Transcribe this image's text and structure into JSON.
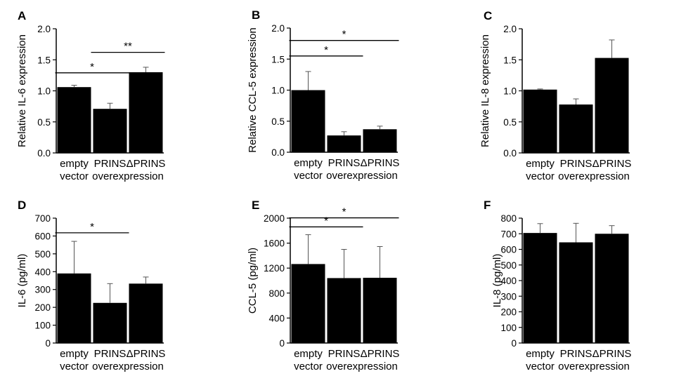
{
  "figure": {
    "bar_color": "#000000",
    "axis_color": "#000000",
    "background": "#ffffff"
  },
  "chart_data": [
    {
      "panel": "A",
      "type": "bar",
      "categories": [
        "empty\nvector",
        "PRINS",
        "ΔPRINS"
      ],
      "group_label": "overexpression",
      "values": [
        1.06,
        0.71,
        1.3
      ],
      "errors": [
        0.03,
        0.09,
        0.08
      ],
      "ylabel": "Relative IL-6 expression",
      "ylim": [
        0,
        2.0
      ],
      "yticks": [
        "0.0",
        "0.5",
        "1.0",
        "1.5",
        "2.0"
      ],
      "significance": [
        {
          "from": 0,
          "to": 1,
          "y": 1.29,
          "label": "*"
        },
        {
          "from": 1,
          "to": 2,
          "y": 1.62,
          "label": "**"
        }
      ]
    },
    {
      "panel": "B",
      "type": "bar",
      "categories": [
        "empty\nvector",
        "PRINS",
        "ΔPRINS"
      ],
      "group_label": "overexpression",
      "values": [
        1.0,
        0.27,
        0.37
      ],
      "errors": [
        0.3,
        0.06,
        0.05
      ],
      "ylabel": "Relative CCL-5 expression",
      "ylim": [
        0,
        2.0
      ],
      "yticks": [
        "0.0",
        "0.5",
        "1.0",
        "1.5",
        "2.0"
      ],
      "significance": [
        {
          "from": 0,
          "to": 1,
          "y": 1.55,
          "label": "*"
        },
        {
          "from": 0,
          "to": 2,
          "y": 1.8,
          "label": "*"
        }
      ]
    },
    {
      "panel": "C",
      "type": "bar",
      "categories": [
        "empty\nvector",
        "PRINS",
        "ΔPRINS"
      ],
      "group_label": "overexpression",
      "values": [
        1.02,
        0.78,
        1.53
      ],
      "errors": [
        0.01,
        0.09,
        0.29
      ],
      "ylabel": "Relative IL-8 expression",
      "ylim": [
        0,
        2.0
      ],
      "yticks": [
        "0.0",
        "0.5",
        "1.0",
        "1.5",
        "2.0"
      ],
      "significance": []
    },
    {
      "panel": "D",
      "type": "bar",
      "categories": [
        "empty\nvector",
        "PRINS",
        "ΔPRINS"
      ],
      "group_label": "overexpression",
      "values": [
        390,
        225,
        333
      ],
      "errors": [
        180,
        108,
        37
      ],
      "ylabel": "IL-6 (pg/ml)",
      "ylim": [
        0,
        700
      ],
      "yticks": [
        "0",
        "100",
        "200",
        "300",
        "400",
        "500",
        "600",
        "700"
      ],
      "significance": [
        {
          "from": 0,
          "to": 1,
          "y": 618,
          "label": "*"
        }
      ]
    },
    {
      "panel": "E",
      "type": "bar",
      "categories": [
        "empty\nvector",
        "PRINS",
        "ΔPRINS"
      ],
      "group_label": "overexpression",
      "values": [
        1265,
        1040,
        1045
      ],
      "errors": [
        470,
        460,
        500
      ],
      "ylabel": "CCL-5 (pg/ml)",
      "ylim": [
        0,
        2000
      ],
      "yticks": [
        "0",
        "400",
        "800",
        "1200",
        "1600",
        "2000"
      ],
      "significance": [
        {
          "from": 0,
          "to": 1,
          "y": 1860,
          "label": "*"
        },
        {
          "from": 0,
          "to": 2,
          "y": 2005,
          "label": "*"
        }
      ]
    },
    {
      "panel": "F",
      "type": "bar",
      "categories": [
        "empty\nvector",
        "PRINS",
        "ΔPRINS"
      ],
      "group_label": "overexpression",
      "values": [
        705,
        645,
        700
      ],
      "errors": [
        60,
        122,
        52
      ],
      "ylabel": "IL-8 (pg/ml)",
      "ylim": [
        0,
        800
      ],
      "yticks": [
        "0",
        "100",
        "200",
        "300",
        "400",
        "500",
        "600",
        "700",
        "800"
      ],
      "significance": []
    }
  ]
}
